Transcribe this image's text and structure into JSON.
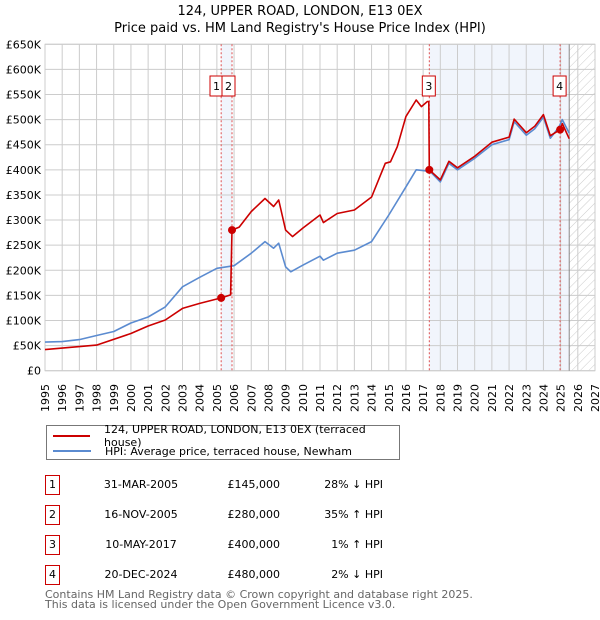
{
  "chart_data": {
    "type": "line",
    "title": "124, UPPER ROAD, LONDON, E13 0EX",
    "subtitle": "Price paid vs. HM Land Registry's House Price Index (HPI)",
    "xlim": [
      1995,
      2027
    ],
    "ylim": [
      0,
      650000
    ],
    "grid": true,
    "x_ticks": [
      "1995",
      "1996",
      "1997",
      "1998",
      "1999",
      "2000",
      "2001",
      "2002",
      "2003",
      "2004",
      "2005",
      "2006",
      "2007",
      "2008",
      "2009",
      "2010",
      "2011",
      "2012",
      "2013",
      "2014",
      "2015",
      "2016",
      "2017",
      "2018",
      "2019",
      "2020",
      "2021",
      "2022",
      "2023",
      "2024",
      "2025",
      "2026",
      "2027"
    ],
    "y_ticks": [
      {
        "value": 0,
        "label": "£0"
      },
      {
        "value": 50000,
        "label": "£50K"
      },
      {
        "value": 100000,
        "label": "£100K"
      },
      {
        "value": 150000,
        "label": "£150K"
      },
      {
        "value": 200000,
        "label": "£200K"
      },
      {
        "value": 250000,
        "label": "£250K"
      },
      {
        "value": 300000,
        "label": "£300K"
      },
      {
        "value": 350000,
        "label": "£350K"
      },
      {
        "value": 400000,
        "label": "£400K"
      },
      {
        "value": 450000,
        "label": "£450K"
      },
      {
        "value": 500000,
        "label": "£500K"
      },
      {
        "value": 550000,
        "label": "£550K"
      },
      {
        "value": 600000,
        "label": "£600K"
      },
      {
        "value": 650000,
        "label": "£650K"
      }
    ],
    "series": [
      {
        "name": "124, UPPER ROAD, LONDON, E13 0EX (terraced house)",
        "color": "#cc0000",
        "x": [
          1995,
          1998,
          2000,
          2001,
          2002,
          2003,
          2004,
          2005.25,
          2005.8,
          2005.88,
          2006.3,
          2007,
          2007.8,
          2008.3,
          2008.6,
          2009,
          2009.4,
          2010,
          2011,
          2011.2,
          2012,
          2013,
          2014,
          2014.8,
          2015.1,
          2015.5,
          2016,
          2016.6,
          2016.9,
          2017.25,
          2017.33,
          2017.36,
          2018,
          2018.5,
          2019,
          2020,
          2021,
          2022,
          2022.3,
          2023,
          2023.5,
          2024,
          2024.4,
          2024.97,
          2025.1,
          2025.5
        ],
        "y": [
          42000,
          51000,
          74000,
          89000,
          101000,
          124000,
          134000,
          145000,
          151000,
          280000,
          286000,
          317000,
          343000,
          327000,
          340000,
          280000,
          267000,
          284000,
          310000,
          295000,
          313000,
          320000,
          346000,
          413000,
          416000,
          446000,
          506000,
          539000,
          526000,
          536000,
          536000,
          400000,
          380000,
          417000,
          404000,
          427000,
          455000,
          465000,
          501000,
          474000,
          487000,
          510000,
          468000,
          480000,
          492000,
          462000
        ]
      },
      {
        "name": "HPI: Average price, terraced house, Newham",
        "color": "#5b8bd0",
        "x": [
          1995,
          1996,
          1997,
          1998,
          1999,
          2000,
          2001,
          2002,
          2003,
          2004,
          2005,
          2006,
          2007,
          2007.8,
          2008.3,
          2008.6,
          2009,
          2009.3,
          2010,
          2011,
          2011.2,
          2012,
          2013,
          2014,
          2015,
          2016,
          2016.6,
          2017.4,
          2018,
          2018.5,
          2019,
          2020,
          2021,
          2022,
          2022.3,
          2023,
          2023.5,
          2024,
          2024.4,
          2024.9,
          2025.1,
          2025.5
        ],
        "y": [
          57000,
          58000,
          62000,
          70000,
          78000,
          95000,
          107000,
          127000,
          167000,
          186000,
          204000,
          209000,
          234000,
          257000,
          244000,
          254000,
          207000,
          197000,
          210000,
          228000,
          220000,
          234000,
          240000,
          257000,
          310000,
          366000,
          400000,
          397000,
          376000,
          413000,
          400000,
          423000,
          450000,
          460000,
          496000,
          469000,
          482000,
          505000,
          463000,
          485000,
          500000,
          473000
        ]
      }
    ],
    "sales": [
      {
        "num": "1",
        "x": 2005.25,
        "price": 145000
      },
      {
        "num": "2",
        "x": 2005.88,
        "price": 280000
      },
      {
        "num": "3",
        "x": 2017.36,
        "price": 400000
      },
      {
        "num": "4",
        "x": 2024.97,
        "price": 480000
      }
    ],
    "shaded_ranges": [
      [
        2005.25,
        2005.88
      ],
      [
        2017.36,
        2025.5
      ]
    ],
    "forecast_from": 2025.5
  },
  "legend": {
    "property": "124, UPPER ROAD, LONDON, E13 0EX (terraced house)",
    "hpi": "HPI: Average price, terraced house, Newham"
  },
  "table": [
    {
      "num": "1",
      "date": "31-MAR-2005",
      "price": "£145,000",
      "diff": "28% ↓ HPI"
    },
    {
      "num": "2",
      "date": "16-NOV-2005",
      "price": "£280,000",
      "diff": "35% ↑ HPI"
    },
    {
      "num": "3",
      "date": "10-MAY-2017",
      "price": "£400,000",
      "diff": "1% ↑ HPI"
    },
    {
      "num": "4",
      "date": "20-DEC-2024",
      "price": "£480,000",
      "diff": "2% ↓ HPI"
    }
  ],
  "footer": {
    "line1": "Contains HM Land Registry data © Crown copyright and database right 2025.",
    "line2": "This data is licensed under the Open Government Licence v3.0."
  }
}
